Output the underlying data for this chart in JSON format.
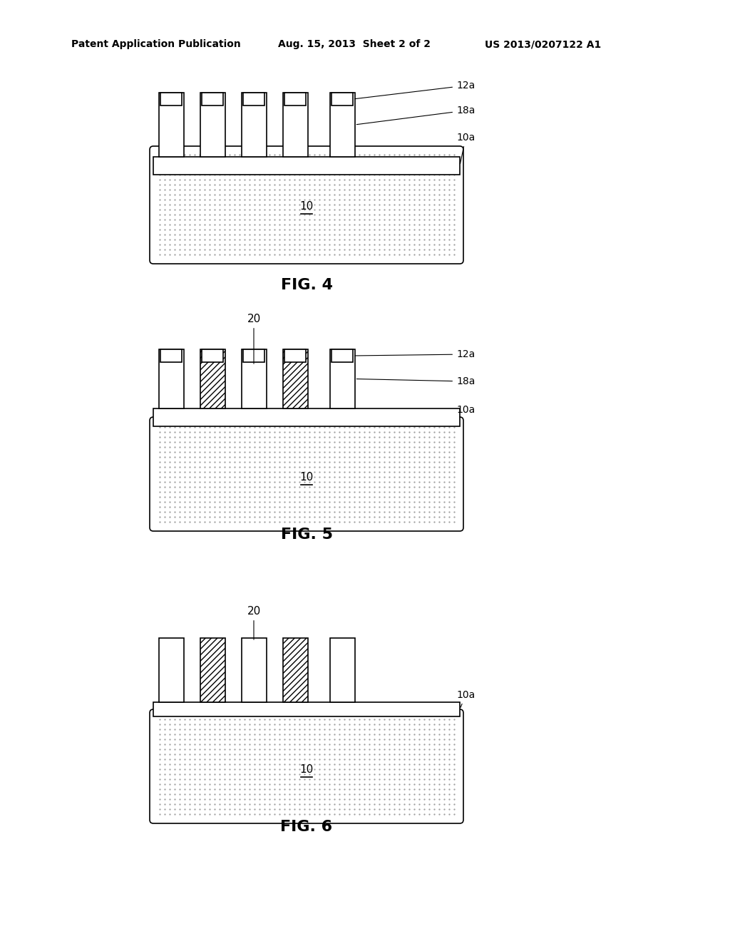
{
  "header_left": "Patent Application Publication",
  "header_mid": "Aug. 15, 2013  Sheet 2 of 2",
  "header_right": "US 2013/0207122 A1",
  "fig4_label": "FIG. 4",
  "fig5_label": "FIG. 5",
  "fig6_label": "FIG. 6",
  "bg_color": "#ffffff",
  "dot_color": "#aaaaaa",
  "line_color": "#000000",
  "hatch_color": "#555555"
}
